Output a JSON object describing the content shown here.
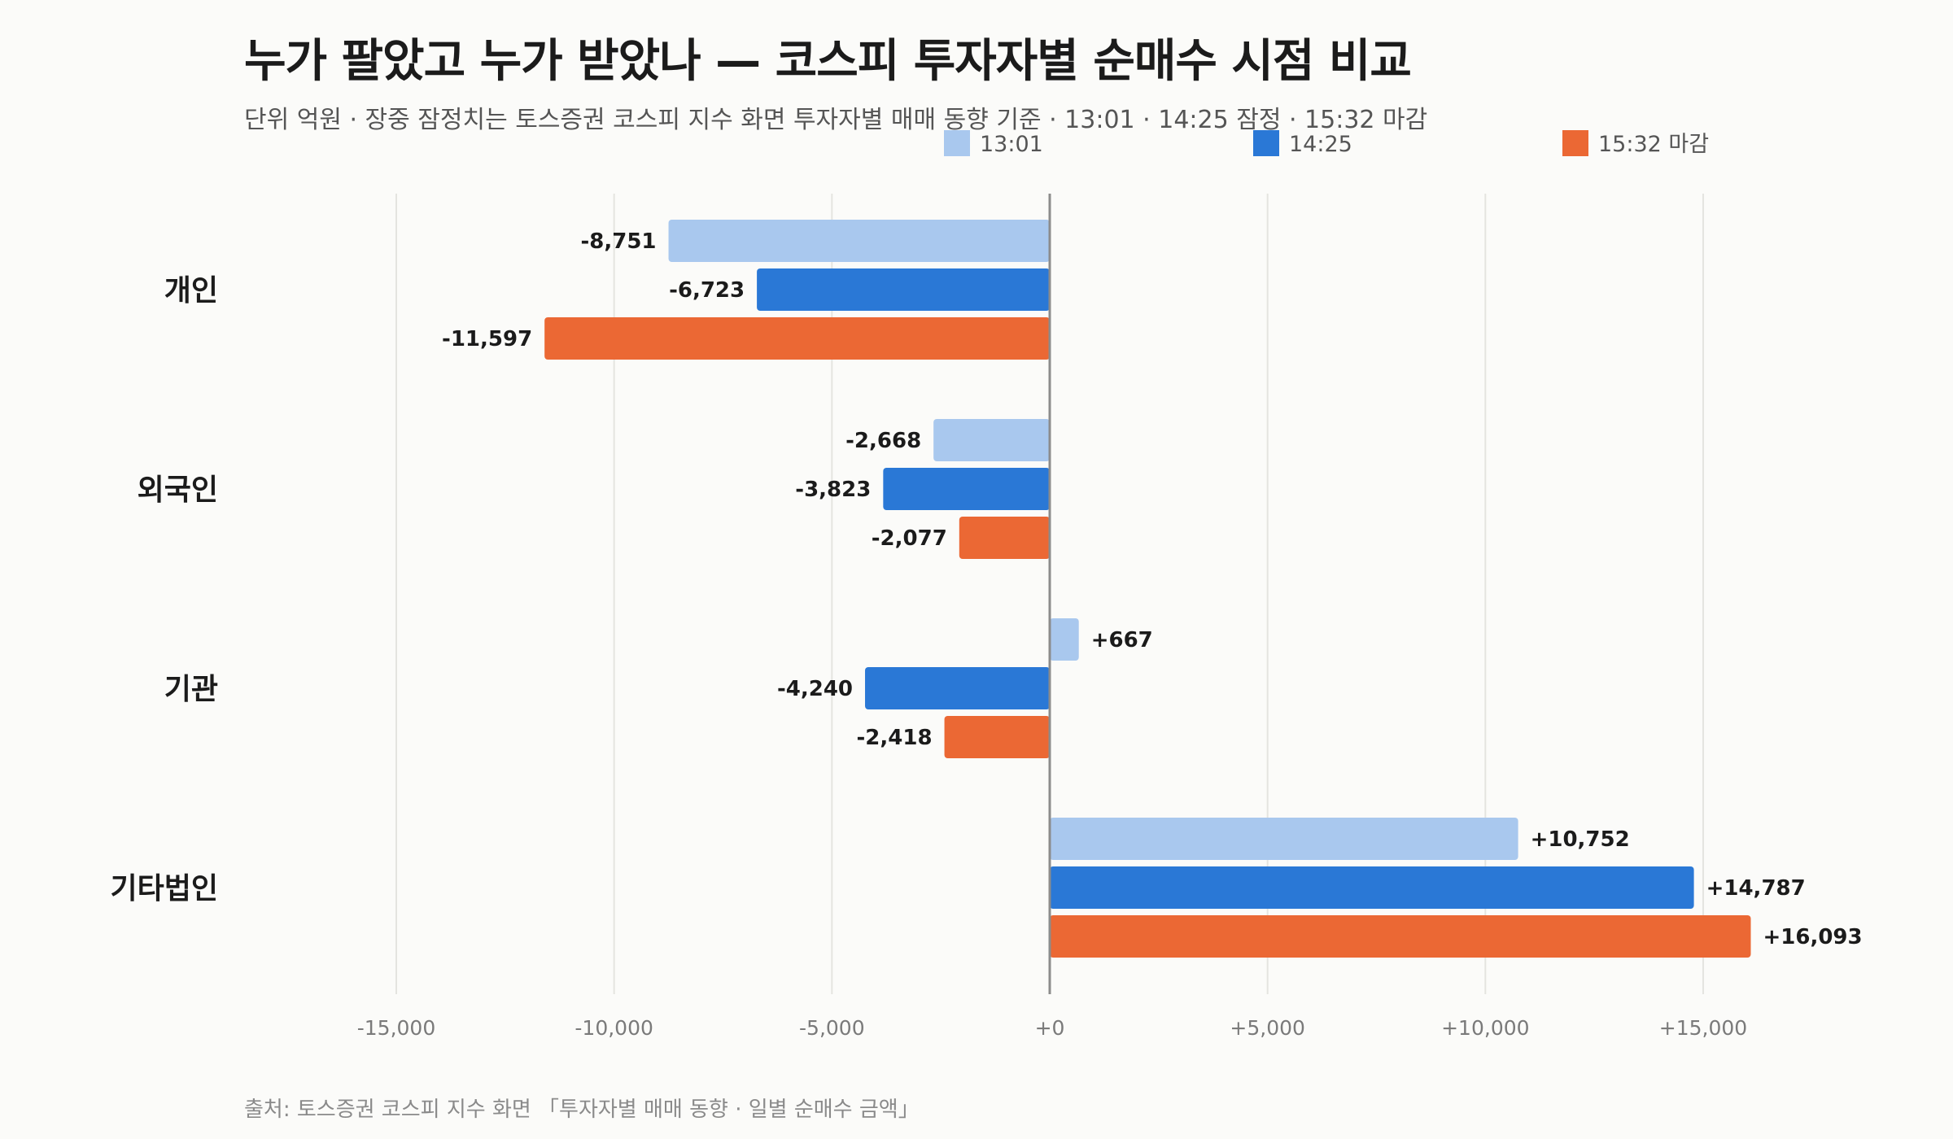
{
  "title": "누가 팔았고 누가 받았나 — 코스피 투자자별 순매수 시점 비교",
  "subtitle": "단위 억원 · 장중 잠정치는 토스증권 코스피 지수 화면 투자자별 매매 동향 기준 · 13:01 · 14:25 잠정 · 15:32 마감",
  "source": "출처: 토스증권 코스피 지수 화면 「투자자별 매매 동향 · 일별 순매수 금액」",
  "chart_data": {
    "type": "bar",
    "orientation": "horizontal",
    "categories": [
      "개인",
      "외국인",
      "기관",
      "기타법인"
    ],
    "series": [
      {
        "name": "13:01",
        "color": "#a9c8ee",
        "values": [
          -8751,
          -2668,
          667,
          10752
        ],
        "labels": [
          "-8,751",
          "-2,668",
          "+667",
          "+10,752"
        ]
      },
      {
        "name": "14:25",
        "color": "#2a78d6",
        "values": [
          -6723,
          -3823,
          -4240,
          14787
        ],
        "labels": [
          "-6,723",
          "-3,823",
          "-4,240",
          "+14,787"
        ]
      },
      {
        "name": "15:32 마감",
        "color": "#eb6834",
        "values": [
          -11597,
          -2077,
          -2418,
          16093
        ],
        "labels": [
          "-11,597",
          "-2,077",
          "-2,418",
          "+16,093"
        ]
      }
    ],
    "xlim": [
      -18000,
      18000
    ],
    "xticks": [
      -15000,
      -10000,
      -5000,
      0,
      5000,
      10000,
      15000
    ],
    "xtick_labels": [
      "-15,000",
      "-10,000",
      "-5,000",
      "+0",
      "+5,000",
      "+10,000",
      "+15,000"
    ],
    "grid": true,
    "legend": "top"
  }
}
